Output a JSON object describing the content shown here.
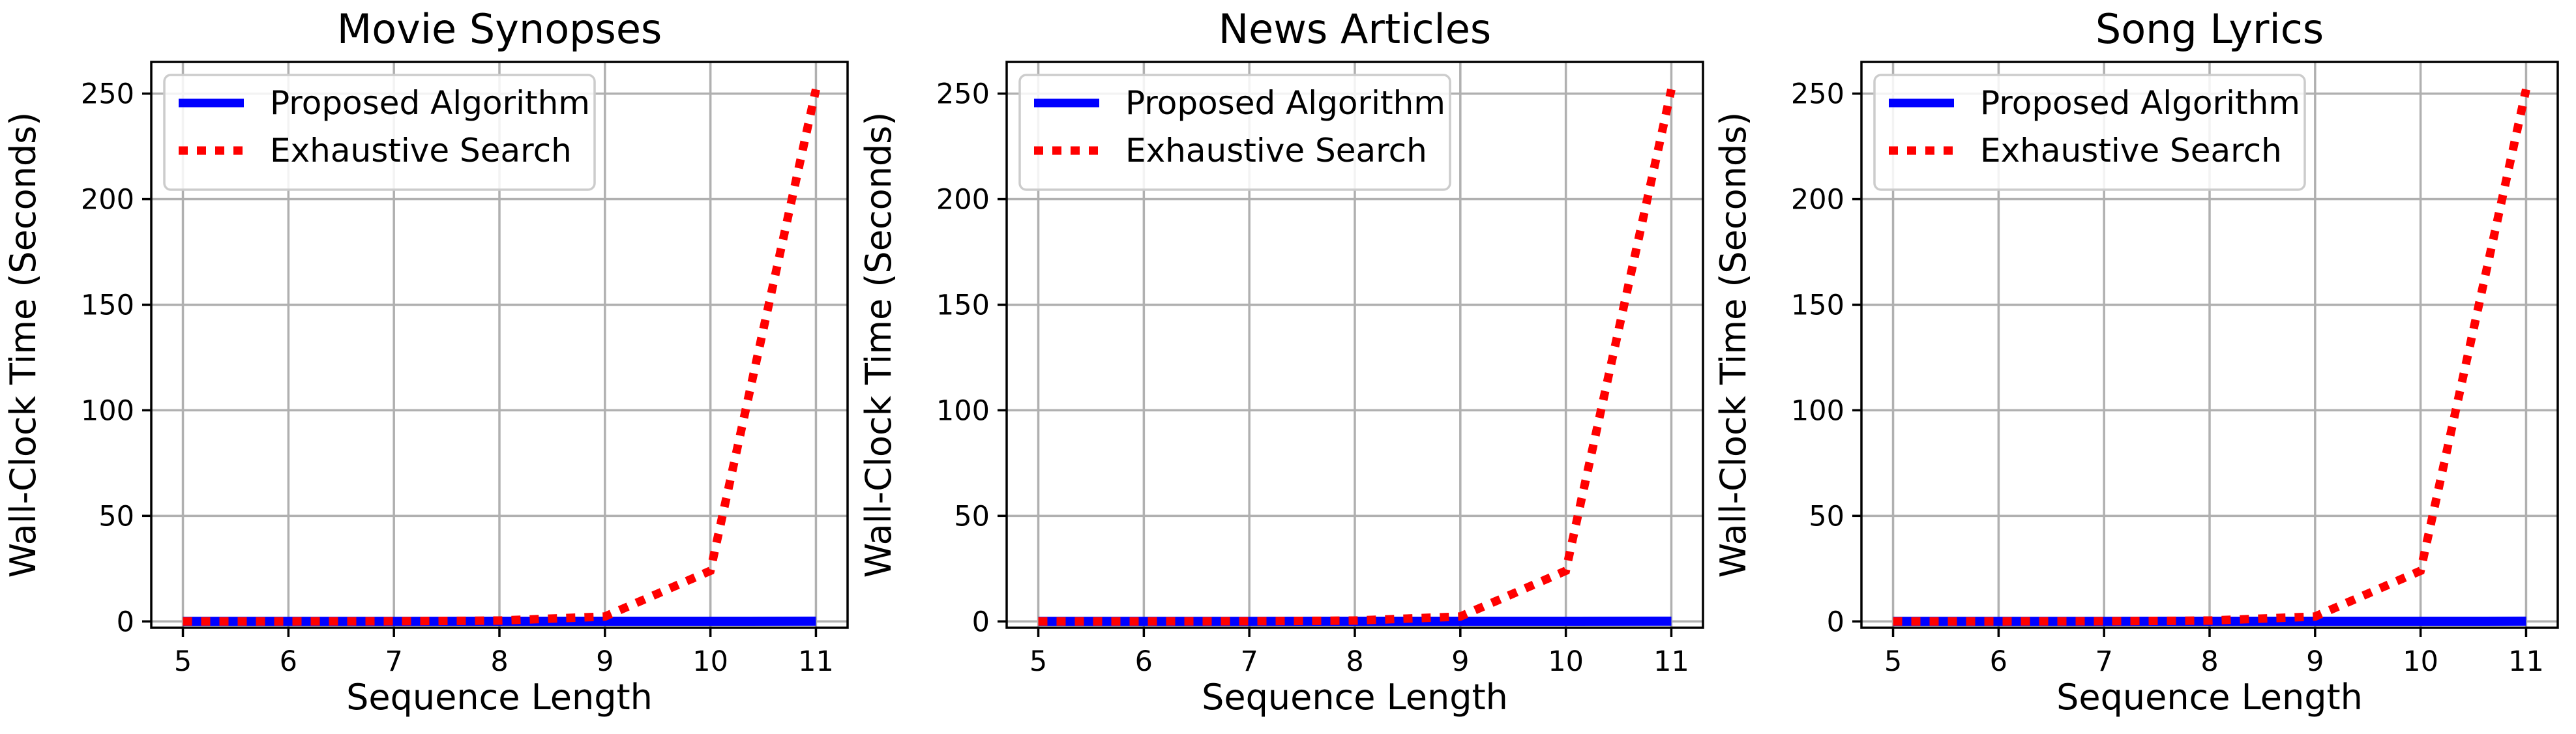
{
  "colors": {
    "proposed": "#0000ff",
    "exhaustive": "#ff0000",
    "grid": "#b0b0b0",
    "axes": "#000000",
    "legend_border": "#cccccc"
  },
  "chart_data": [
    {
      "type": "line",
      "title": "Movie Synopses",
      "xlabel": "Sequence Length",
      "ylabel": "Wall-Clock Time (Seconds)",
      "x": [
        5,
        6,
        7,
        8,
        9,
        10,
        11
      ],
      "xticks": [
        "5",
        "6",
        "7",
        "8",
        "9",
        "10",
        "11"
      ],
      "yticks": [
        "0",
        "50",
        "100",
        "150",
        "200",
        "250"
      ],
      "xlim": [
        4.7,
        11.3
      ],
      "ylim": [
        -3,
        265
      ],
      "grid": true,
      "legend_position": "upper left",
      "series": [
        {
          "name": "Proposed Algorithm",
          "style": "solid",
          "color": "#0000ff",
          "values": [
            0.05,
            0.06,
            0.07,
            0.08,
            0.09,
            0.1,
            0.12
          ]
        },
        {
          "name": "Exhaustive Search",
          "style": "dotted",
          "color": "#ff0000",
          "values": [
            0.01,
            0.03,
            0.1,
            0.4,
            2.3,
            24,
            252
          ]
        }
      ]
    },
    {
      "type": "line",
      "title": "News Articles",
      "xlabel": "Sequence Length",
      "ylabel": "Wall-Clock Time (Seconds)",
      "x": [
        5,
        6,
        7,
        8,
        9,
        10,
        11
      ],
      "xticks": [
        "5",
        "6",
        "7",
        "8",
        "9",
        "10",
        "11"
      ],
      "yticks": [
        "0",
        "50",
        "100",
        "150",
        "200",
        "250"
      ],
      "xlim": [
        4.7,
        11.3
      ],
      "ylim": [
        -3,
        265
      ],
      "grid": true,
      "legend_position": "upper left",
      "series": [
        {
          "name": "Proposed Algorithm",
          "style": "solid",
          "color": "#0000ff",
          "values": [
            0.05,
            0.06,
            0.07,
            0.08,
            0.09,
            0.1,
            0.12
          ]
        },
        {
          "name": "Exhaustive Search",
          "style": "dotted",
          "color": "#ff0000",
          "values": [
            0.01,
            0.03,
            0.1,
            0.4,
            2.3,
            24,
            252
          ]
        }
      ]
    },
    {
      "type": "line",
      "title": "Song Lyrics",
      "xlabel": "Sequence Length",
      "ylabel": "Wall-Clock Time (Seconds)",
      "x": [
        5,
        6,
        7,
        8,
        9,
        10,
        11
      ],
      "xticks": [
        "5",
        "6",
        "7",
        "8",
        "9",
        "10",
        "11"
      ],
      "yticks": [
        "0",
        "50",
        "100",
        "150",
        "200",
        "250"
      ],
      "xlim": [
        4.7,
        11.3
      ],
      "ylim": [
        -3,
        265
      ],
      "grid": true,
      "legend_position": "upper left",
      "series": [
        {
          "name": "Proposed Algorithm",
          "style": "solid",
          "color": "#0000ff",
          "values": [
            0.05,
            0.06,
            0.07,
            0.08,
            0.09,
            0.1,
            0.12
          ]
        },
        {
          "name": "Exhaustive Search",
          "style": "dotted",
          "color": "#ff0000",
          "values": [
            0.01,
            0.03,
            0.1,
            0.4,
            2.3,
            24,
            252
          ]
        }
      ]
    }
  ]
}
